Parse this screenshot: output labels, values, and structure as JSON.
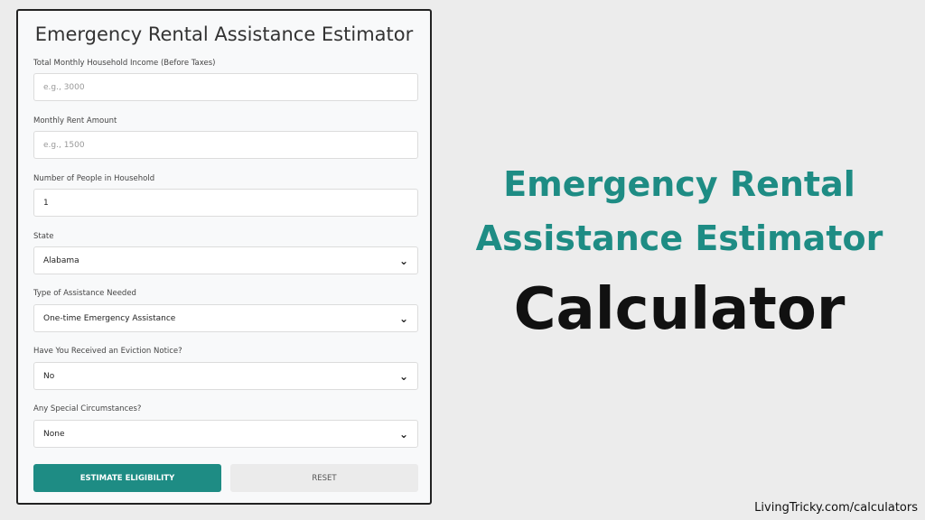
{
  "form": {
    "title": "Emergency Rental Assistance Estimator",
    "fields": [
      {
        "label": "Total Monthly Household Income (Before Taxes)",
        "placeholder": "e.g., 3000",
        "value": ""
      },
      {
        "label": "Monthly Rent Amount",
        "placeholder": "e.g., 1500",
        "value": ""
      },
      {
        "label": "Number of People in Household",
        "value": "1"
      },
      {
        "label": "State",
        "value": "Alabama"
      },
      {
        "label": "Type of Assistance Needed",
        "value": "One-time Emergency Assistance"
      },
      {
        "label": "Have You Received an Eviction Notice?",
        "value": "No"
      },
      {
        "label": "Any Special Circumstances?",
        "value": "None"
      }
    ],
    "estimate_label": "ESTIMATE ELIGIBILITY",
    "reset_label": "RESET"
  },
  "banner": {
    "line1": "Emergency Rental",
    "line2": "Assistance Estimator",
    "line3": "Calculator"
  },
  "footer": "LivingTricky.com/calculators",
  "colors": {
    "accent": "#1e8c84"
  }
}
